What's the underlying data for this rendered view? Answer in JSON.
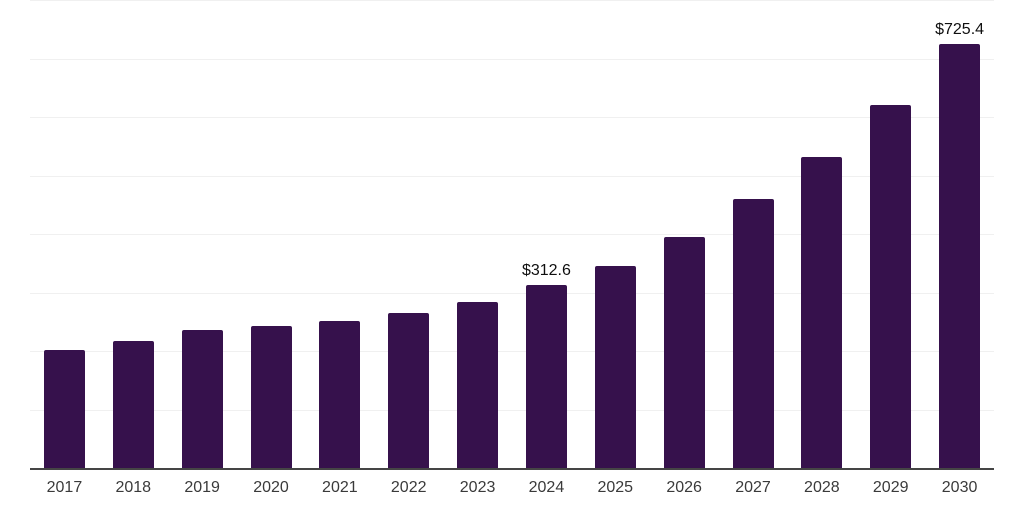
{
  "chart_data": {
    "type": "bar",
    "title": "",
    "xlabel": "",
    "ylabel": "",
    "categories": [
      "2017",
      "2018",
      "2019",
      "2020",
      "2021",
      "2022",
      "2023",
      "2024",
      "2025",
      "2026",
      "2027",
      "2028",
      "2029",
      "2030"
    ],
    "values": [
      201.7,
      217.1,
      235.9,
      242.7,
      251.3,
      265.0,
      283.8,
      312.6,
      346.2,
      394.9,
      459.9,
      531.7,
      620.6,
      725.4
    ],
    "annotations": [
      {
        "category": "2024",
        "label": "$312.6"
      },
      {
        "category": "2030",
        "label": "$725.4"
      }
    ],
    "ylim": [
      0,
      800
    ],
    "gridline_step": 100,
    "grid": true,
    "legend": false,
    "colors": {
      "bar": "#36114C",
      "gridline": "#F0F0F0",
      "axis": "#454545",
      "tick_label": "#3A3A3A",
      "value_label": "#0F0F0F",
      "background": "#FFFFFF"
    }
  }
}
